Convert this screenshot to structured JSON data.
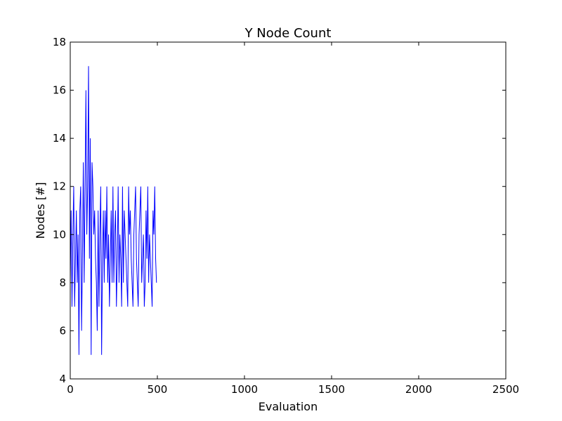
{
  "chart_data": {
    "type": "line",
    "title": "Y Node Count",
    "xlabel": "Evaluation",
    "ylabel": "Nodes [#]",
    "xlim": [
      0,
      2500
    ],
    "ylim": [
      4,
      18
    ],
    "xticks": [
      0,
      500,
      1000,
      1500,
      2000,
      2500
    ],
    "yticks": [
      4,
      6,
      8,
      10,
      12,
      14,
      16,
      18
    ],
    "xtick_labels": [
      "0",
      "500",
      "1000",
      "1500",
      "2000",
      "2500"
    ],
    "ytick_labels": [
      "4",
      "6",
      "8",
      "10",
      "12",
      "14",
      "16",
      "18"
    ],
    "grid": false,
    "legend": "none",
    "line_color": "#0000ff",
    "series": [
      {
        "x_start": 0,
        "x_step": 5,
        "values": [
          8,
          11,
          7,
          10,
          12,
          7,
          9,
          11,
          8,
          10,
          5,
          11,
          12,
          6,
          9,
          13,
          8,
          12,
          16,
          10,
          12,
          17,
          9,
          14,
          5,
          13,
          12,
          10,
          11,
          9,
          8,
          6,
          11,
          7,
          10,
          12,
          5,
          9,
          11,
          8,
          11,
          9,
          12,
          8,
          10,
          7,
          9,
          11,
          8,
          12,
          8,
          10,
          11,
          7,
          9,
          12,
          8,
          10,
          9,
          7,
          12,
          8,
          11,
          10,
          9,
          8,
          7,
          12,
          10,
          11,
          9,
          8,
          7,
          10,
          11,
          12,
          9,
          8,
          7,
          10,
          11,
          12,
          8,
          9,
          10,
          7,
          8,
          11,
          9,
          12,
          8,
          10,
          9,
          8,
          7,
          11,
          10,
          12,
          9,
          8
        ]
      }
    ]
  }
}
